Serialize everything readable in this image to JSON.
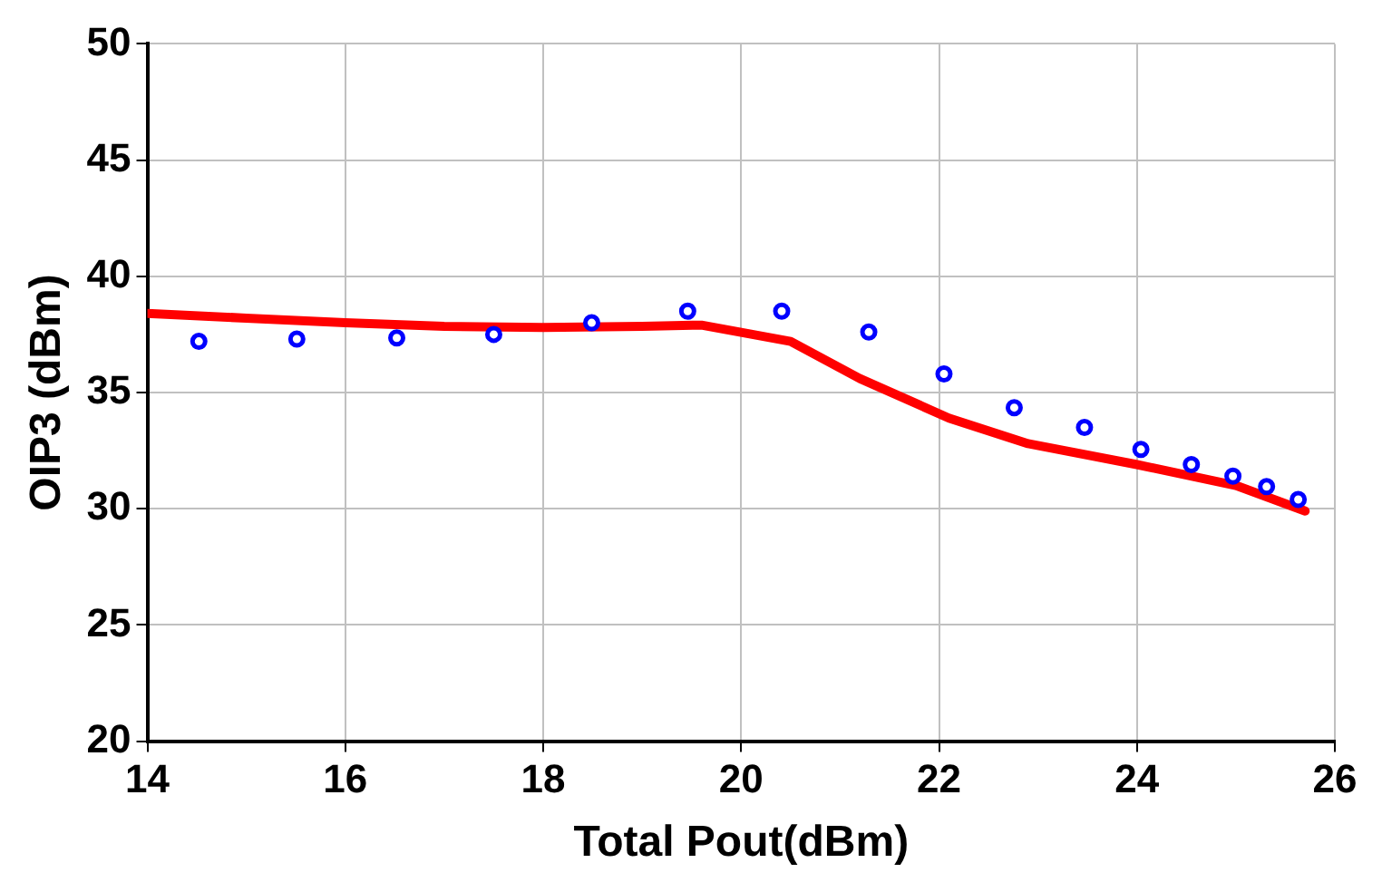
{
  "chart_data": {
    "type": "scatter",
    "xlabel": "Total Pout(dBm)",
    "ylabel": "OIP3 (dBm)",
    "xlim": [
      14,
      26
    ],
    "xticks": [
      14,
      16,
      18,
      20,
      22,
      24,
      26
    ],
    "ylim": [
      20,
      50
    ],
    "yticks": [
      20,
      25,
      30,
      35,
      40,
      45,
      50
    ],
    "grid": true,
    "series": [
      {
        "type": "line",
        "color": "#ff0000",
        "marker": "none",
        "line_style": "solid",
        "x": [
          14,
          15,
          16,
          17,
          18,
          19,
          19.6,
          20.5,
          21.2,
          22.1,
          22.9,
          24,
          25,
          25.7
        ],
        "values": [
          38.4,
          38.2,
          38.0,
          37.85,
          37.8,
          37.85,
          37.9,
          37.2,
          35.6,
          33.9,
          32.8,
          31.9,
          31.0,
          29.9
        ]
      },
      {
        "type": "scatter",
        "color": "#0000ff",
        "marker": "circle",
        "x": [
          14.52,
          15.51,
          16.52,
          17.5,
          18.49,
          19.46,
          20.41,
          21.29,
          22.05,
          22.76,
          23.47,
          24.04,
          24.55,
          24.97,
          25.31,
          25.63
        ],
        "values": [
          37.2,
          37.3,
          37.35,
          37.5,
          38.0,
          38.5,
          38.5,
          37.6,
          35.8,
          34.35,
          33.5,
          32.55,
          31.9,
          31.4,
          30.95,
          30.4
        ]
      }
    ]
  }
}
